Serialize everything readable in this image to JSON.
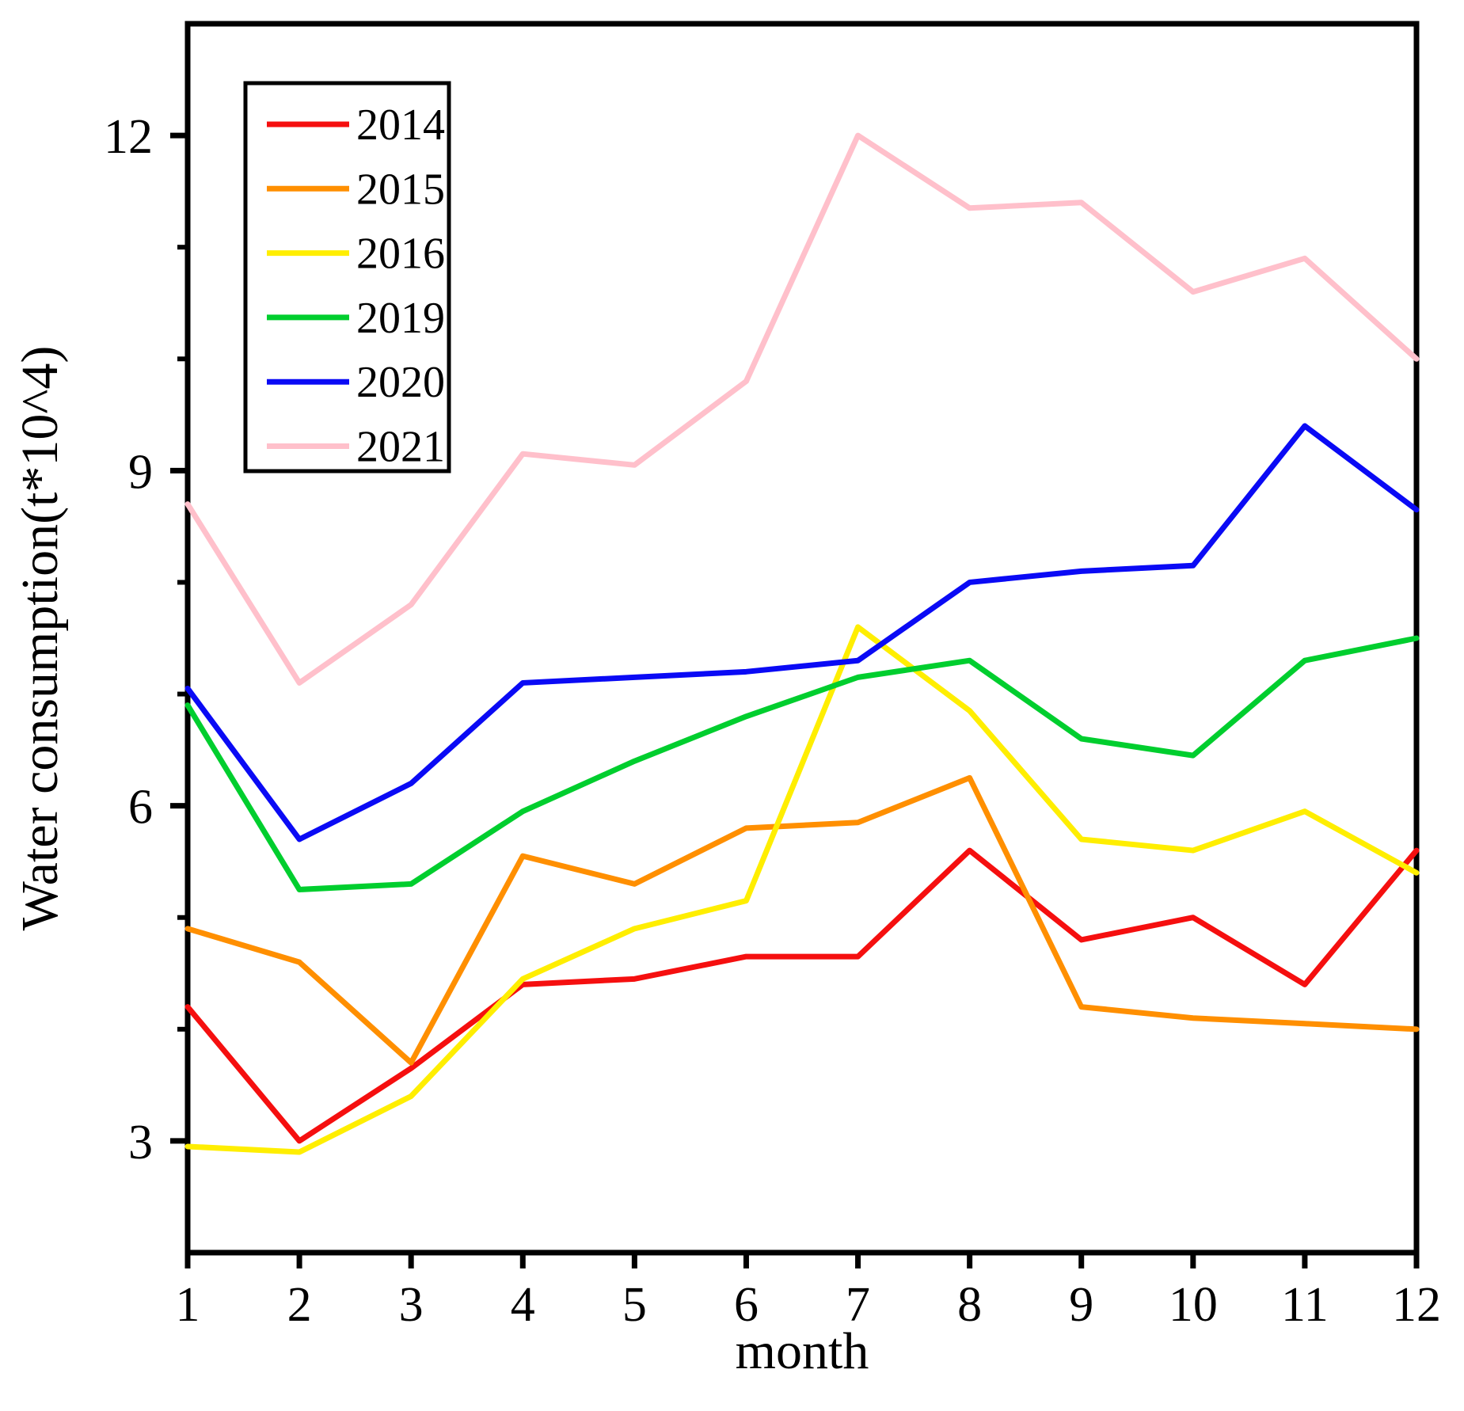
{
  "figure": {
    "background": "#ffffff"
  },
  "chart_data": {
    "type": "line",
    "title": "",
    "xlabel": "month",
    "ylabel": "Water consumption(t*10^4)",
    "x": [
      1,
      2,
      3,
      4,
      5,
      6,
      7,
      8,
      9,
      10,
      11,
      12
    ],
    "xlim": [
      1,
      12
    ],
    "ylim": [
      2,
      13
    ],
    "xticks": [
      1,
      2,
      3,
      4,
      5,
      6,
      7,
      8,
      9,
      10,
      11,
      12
    ],
    "yticks_major": [
      3,
      6,
      9,
      12
    ],
    "yticks_minor": [
      4,
      5,
      7,
      8,
      10,
      11
    ],
    "grid": false,
    "legend_position": "upper-left",
    "axis_color": "#000000",
    "series": [
      {
        "name": "2014",
        "color": "#F50F0F",
        "values": [
          4.2,
          3.0,
          3.65,
          4.4,
          4.45,
          4.65,
          4.65,
          5.6,
          4.8,
          5.0,
          4.4,
          5.6
        ]
      },
      {
        "name": "2015",
        "color": "#FF8F00",
        "values": [
          4.9,
          4.6,
          3.7,
          5.55,
          5.3,
          5.8,
          5.85,
          6.25,
          4.2,
          4.1,
          4.05,
          4.0
        ]
      },
      {
        "name": "2016",
        "color": "#FFEE00",
        "values": [
          2.95,
          2.9,
          3.4,
          4.45,
          4.9,
          5.15,
          7.6,
          6.85,
          5.7,
          5.6,
          5.95,
          5.4
        ]
      },
      {
        "name": "2019",
        "color": "#00CE2E",
        "values": [
          6.9,
          5.25,
          5.3,
          5.95,
          6.4,
          6.8,
          7.15,
          7.3,
          6.6,
          6.45,
          7.3,
          7.5
        ]
      },
      {
        "name": "2020",
        "color": "#0A0AF5",
        "values": [
          7.05,
          5.7,
          6.2,
          7.1,
          7.15,
          7.2,
          7.3,
          8.0,
          8.1,
          8.15,
          9.4,
          8.65
        ]
      },
      {
        "name": "2021",
        "color": "#FFC0CB",
        "values": [
          8.7,
          7.1,
          7.8,
          9.15,
          9.05,
          9.8,
          12.0,
          11.35,
          11.4,
          10.6,
          10.9,
          10.0
        ]
      }
    ]
  }
}
